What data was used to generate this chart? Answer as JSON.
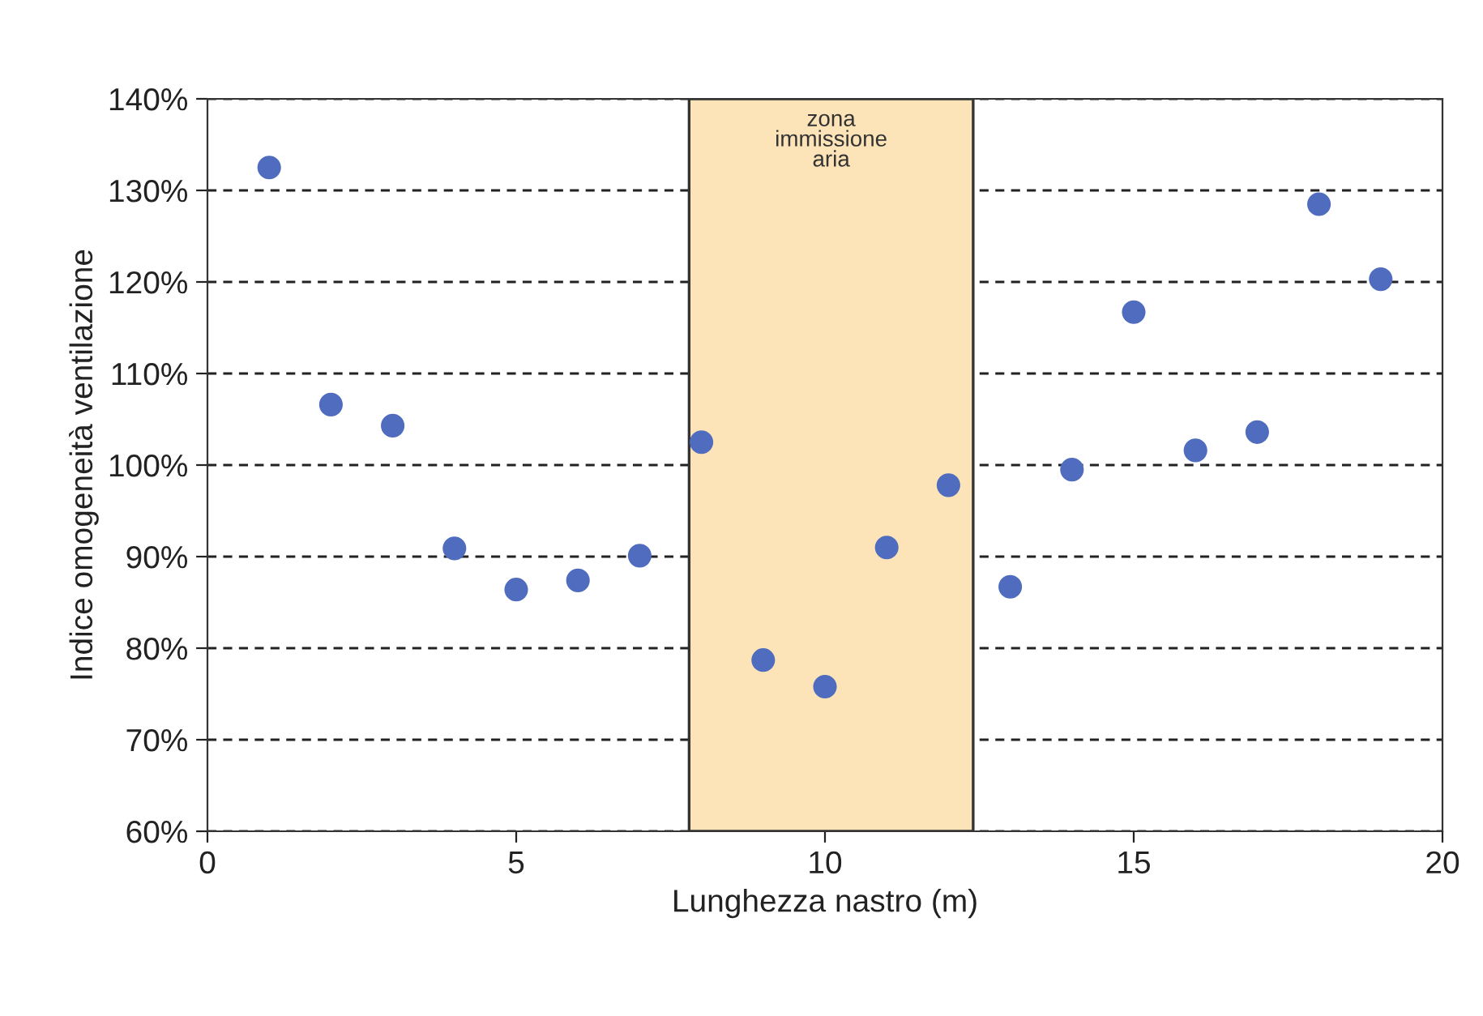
{
  "chart_data": {
    "type": "scatter",
    "xlabel": "Lunghezza nastro (m)",
    "ylabel": "Indice omogeneità ventilazione",
    "x": [
      1,
      2,
      3,
      4,
      5,
      6,
      7,
      8,
      9,
      10,
      11,
      12,
      13,
      14,
      15,
      16,
      17,
      18,
      19
    ],
    "series": [
      {
        "color": "#4f6cbf",
        "values": [
          132.5,
          106.6,
          104.3,
          90.9,
          86.4,
          87.4,
          90.1,
          102.5,
          78.7,
          75.8,
          91,
          97.8,
          86.7,
          99.5,
          116.7,
          101.6,
          103.6,
          128.5,
          120.3
        ]
      }
    ],
    "xlim": [
      0,
      20
    ],
    "xticks": [
      0,
      5,
      10,
      15,
      20
    ],
    "ylim": [
      60,
      140
    ],
    "yticks": [
      {
        "value": 60,
        "label": "60%"
      },
      {
        "value": 70,
        "label": "70%"
      },
      {
        "value": 80,
        "label": "80%"
      },
      {
        "value": 90,
        "label": "90%"
      },
      {
        "value": 100,
        "label": "100%"
      },
      {
        "value": 110,
        "label": "110%"
      },
      {
        "value": 120,
        "label": "120%"
      },
      {
        "value": 130,
        "label": "130%"
      },
      {
        "value": 140,
        "label": "140%"
      }
    ],
    "bands": [
      {
        "axis": "x",
        "from": 7.8,
        "to": 12.4,
        "label": "zona\nimmissione\naria",
        "color": "#fde3b8"
      }
    ],
    "grid": "y",
    "marker": "circle",
    "legend": false
  }
}
